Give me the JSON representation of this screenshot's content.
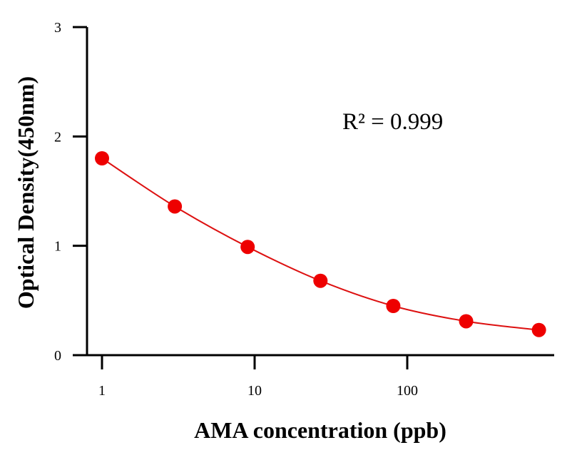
{
  "chart_data": {
    "type": "scatter",
    "title": "",
    "xlabel": "AMA concentration (ppb)",
    "ylabel": "Optical Density(450nm)",
    "x_scale": "log",
    "xlim": [
      0.8,
      900
    ],
    "ylim": [
      0,
      3
    ],
    "x_ticks": [
      {
        "value": 1,
        "label": "1"
      },
      {
        "value": 10,
        "label": "10"
      },
      {
        "value": 100,
        "label": "100"
      }
    ],
    "y_ticks": [
      {
        "value": 0,
        "label": "0"
      },
      {
        "value": 1,
        "label": "1"
      },
      {
        "value": 2,
        "label": "2"
      },
      {
        "value": 3,
        "label": "3"
      }
    ],
    "annotation": "R² = 0.999",
    "grid": false,
    "legend": "none",
    "series": [
      {
        "color": "#ee0000",
        "fit_color": "#dd1111",
        "points": [
          {
            "x": 1,
            "y": 1.8
          },
          {
            "x": 3,
            "y": 1.36
          },
          {
            "x": 9,
            "y": 0.99
          },
          {
            "x": 27,
            "y": 0.68
          },
          {
            "x": 81,
            "y": 0.45
          },
          {
            "x": 243,
            "y": 0.31
          },
          {
            "x": 729,
            "y": 0.23
          }
        ]
      }
    ]
  }
}
